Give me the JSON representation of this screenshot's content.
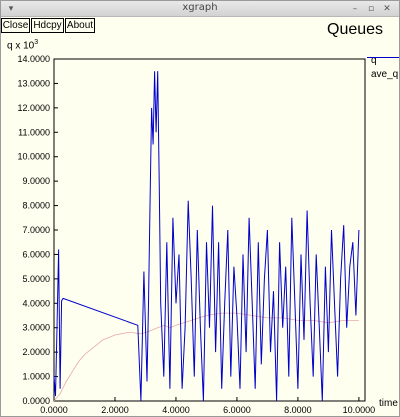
{
  "window": {
    "title": "xgraph"
  },
  "titlebar_icons": {
    "menu": "chevron-down-icon",
    "minimize": "minimize-icon",
    "maximize": "maximize-icon",
    "close": "close-icon"
  },
  "toolbar": {
    "close_label": "Close",
    "hdcpy_label": "Hdcpy",
    "about_label": "About"
  },
  "plot": {
    "title": "Queues",
    "ylabel_base": "q x 10",
    "ylabel_exp": "3",
    "xlabel": "time"
  },
  "colors": {
    "q": "#0000cc",
    "ave_q": "#e8a8a8",
    "grid": "#000000"
  },
  "chart_data": {
    "type": "line",
    "title": "Queues",
    "xlabel": "time",
    "ylabel": "q x 10^3",
    "xlim": [
      0,
      10.2
    ],
    "ylim": [
      0,
      14
    ],
    "x_ticks": [
      "0.0000",
      "2.0000",
      "4.0000",
      "6.0000",
      "8.0000",
      "10.0000"
    ],
    "y_ticks": [
      "0.0000",
      "1.0000",
      "2.0000",
      "3.0000",
      "4.0000",
      "5.0000",
      "6.0000",
      "7.0000",
      "8.0000",
      "9.0000",
      "10.0000",
      "11.0000",
      "12.0000",
      "13.0000",
      "14.0000"
    ],
    "legend": "right",
    "series": [
      {
        "name": "q",
        "x": [
          0.0,
          0.05,
          0.1,
          0.15,
          0.2,
          0.25,
          0.3,
          2.75,
          2.85,
          2.95,
          3.05,
          3.1,
          3.15,
          3.2,
          3.25,
          3.3,
          3.35,
          3.4,
          3.45,
          3.5,
          3.6,
          3.7,
          3.8,
          3.9,
          4.0,
          4.1,
          4.2,
          4.3,
          4.4,
          4.5,
          4.6,
          4.7,
          4.8,
          4.9,
          5.0,
          5.1,
          5.2,
          5.3,
          5.4,
          5.5,
          5.6,
          5.7,
          5.8,
          5.9,
          6.0,
          6.1,
          6.2,
          6.3,
          6.4,
          6.5,
          6.6,
          6.7,
          6.8,
          6.9,
          7.0,
          7.1,
          7.2,
          7.3,
          7.4,
          7.5,
          7.6,
          7.7,
          7.8,
          7.9,
          8.0,
          8.1,
          8.2,
          8.3,
          8.4,
          8.5,
          8.6,
          8.7,
          8.8,
          8.9,
          9.0,
          9.1,
          9.2,
          9.3,
          9.4,
          9.5,
          9.6,
          9.7,
          9.8,
          9.9,
          10.0
        ],
        "y": [
          1.0,
          0.2,
          3.0,
          6.2,
          0.5,
          4.1,
          4.2,
          3.1,
          0.0,
          5.3,
          0.8,
          4.0,
          8.0,
          12.0,
          10.5,
          13.5,
          11.0,
          13.5,
          9.0,
          4.0,
          1.0,
          6.5,
          0.5,
          7.5,
          4.0,
          6.0,
          0.5,
          3.0,
          8.2,
          5.0,
          1.0,
          7.0,
          3.0,
          0.0,
          6.5,
          3.0,
          8.0,
          2.0,
          6.5,
          0.5,
          4.0,
          7.0,
          1.0,
          5.5,
          3.5,
          0.5,
          6.0,
          2.0,
          7.5,
          4.0,
          0.5,
          6.5,
          1.5,
          5.0,
          7.0,
          2.0,
          4.5,
          0.0,
          6.5,
          3.0,
          5.5,
          1.0,
          7.5,
          4.0,
          0.5,
          6.0,
          2.5,
          7.8,
          4.0,
          1.0,
          6.0,
          3.0,
          0.0,
          5.5,
          2.0,
          7.0,
          4.0,
          1.0,
          5.0,
          7.2,
          3.0,
          5.5,
          6.5,
          3.5,
          7.0
        ]
      },
      {
        "name": "ave_q",
        "x": [
          0.0,
          0.2,
          0.4,
          0.6,
          0.8,
          1.0,
          1.2,
          1.4,
          1.6,
          1.8,
          2.0,
          2.2,
          2.4,
          2.6,
          2.8,
          3.0,
          3.2,
          3.4,
          3.6,
          3.8,
          4.0,
          4.5,
          5.0,
          5.5,
          6.0,
          6.5,
          7.0,
          7.5,
          8.0,
          8.5,
          9.0,
          9.5,
          10.0
        ],
        "y": [
          0.0,
          0.3,
          0.8,
          1.2,
          1.6,
          1.9,
          2.1,
          2.3,
          2.5,
          2.6,
          2.7,
          2.75,
          2.8,
          2.8,
          2.75,
          2.8,
          2.9,
          3.0,
          3.1,
          3.0,
          3.1,
          3.3,
          3.5,
          3.6,
          3.6,
          3.5,
          3.4,
          3.4,
          3.3,
          3.3,
          3.2,
          3.3,
          3.3
        ]
      }
    ]
  }
}
